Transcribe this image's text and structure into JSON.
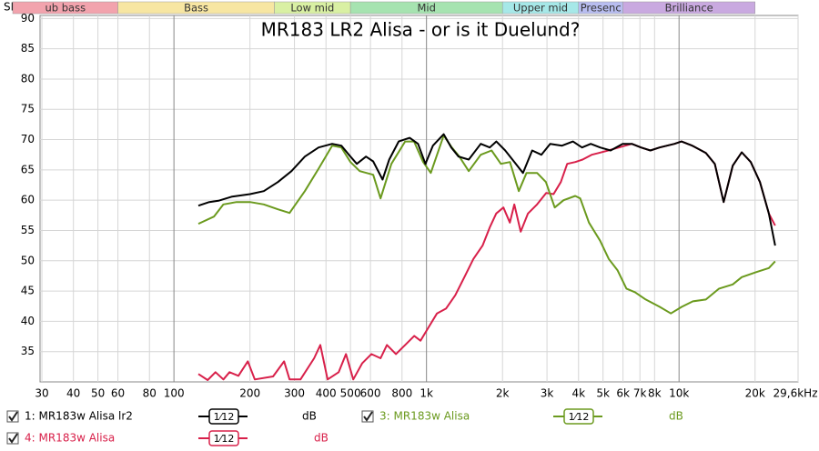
{
  "chart_data": {
    "type": "line",
    "title": "MR183 LR2 Alisa - or is it Duelund?",
    "y_label": "SPL",
    "log_x": true,
    "grid": true,
    "xlim": [
      29.5,
      29600
    ],
    "ylim": [
      30,
      90.5
    ],
    "xticks": [
      30,
      40,
      50,
      60,
      80,
      100,
      200,
      300,
      400,
      500,
      600,
      800,
      {
        "value": 1000,
        "label": "1k"
      },
      {
        "value": 2000,
        "label": "2k"
      },
      {
        "value": 3000,
        "label": "3k"
      },
      {
        "value": 4000,
        "label": "4k"
      },
      {
        "value": 5000,
        "label": "5k"
      },
      {
        "value": 6000,
        "label": "6k"
      },
      {
        "value": 7000,
        "label": "7k"
      },
      {
        "value": 8000,
        "label": "8k"
      },
      {
        "value": 10000,
        "label": "10k"
      },
      {
        "value": 20000,
        "label": "20k"
      },
      {
        "value": 29600,
        "label": "29,6kHz"
      }
    ],
    "yticks": [
      35,
      40,
      45,
      50,
      55,
      60,
      65,
      70,
      75,
      80,
      85,
      90
    ],
    "bands": [
      {
        "name": "ub bass",
        "from": 20,
        "to": 60,
        "color": "#f2a3ad"
      },
      {
        "name": "Bass",
        "from": 60,
        "to": 250,
        "color": "#f7e6a2"
      },
      {
        "name": "Low mid",
        "from": 250,
        "to": 500,
        "color": "#d9f0a3"
      },
      {
        "name": "Mid",
        "from": 500,
        "to": 2000,
        "color": "#a6e3b0"
      },
      {
        "name": "Upper mid",
        "from": 2000,
        "to": 4000,
        "color": "#a6e8e8"
      },
      {
        "name": "Presenc",
        "from": 4000,
        "to": 6000,
        "color": "#b8bdf0"
      },
      {
        "name": "Brilliance",
        "from": 6000,
        "to": 20000,
        "color": "#c9a9e0"
      }
    ],
    "smoothing": "1⁄12",
    "unit": "dB",
    "series": [
      {
        "name": "1: MR183w Alisa lr2",
        "color": "#000000",
        "x": [
          125,
          138,
          150,
          170,
          200,
          227,
          258,
          292,
          330,
          374,
          423,
          460,
          500,
          530,
          576,
          615,
          670,
          712,
          776,
          858,
          926,
          990,
          1060,
          1170,
          1253,
          1340,
          1470,
          1640,
          1780,
          1890,
          2050,
          2230,
          2410,
          2620,
          2850,
          3090,
          3440,
          3800,
          4130,
          4470,
          4870,
          5360,
          5980,
          6500,
          7070,
          7700,
          8370,
          9590,
          10230,
          11280,
          12770,
          13850,
          15020,
          16320,
          17710,
          19230,
          20900,
          22670,
          24020
        ],
        "values": [
          59.1,
          59.7,
          59.9,
          60.6,
          61.0,
          61.5,
          63.0,
          64.8,
          67.2,
          68.7,
          69.3,
          69.0,
          67.2,
          66.0,
          67.2,
          66.4,
          63.4,
          66.7,
          69.7,
          70.3,
          69.3,
          66.0,
          69.0,
          70.9,
          68.7,
          67.2,
          66.7,
          69.3,
          68.7,
          69.7,
          68.2,
          66.3,
          64.5,
          68.2,
          67.5,
          69.3,
          69.0,
          69.7,
          68.7,
          69.3,
          68.7,
          68.2,
          69.3,
          69.3,
          68.7,
          68.2,
          68.7,
          69.3,
          69.7,
          69.0,
          67.8,
          66.0,
          59.7,
          65.7,
          67.9,
          66.3,
          63.0,
          57.8,
          52.5
        ]
      },
      {
        "name": "3: MR183w Alisa",
        "color": "#6b9a1e",
        "x": [
          125,
          144,
          157,
          177,
          200,
          227,
          258,
          287,
          330,
          374,
          423,
          460,
          500,
          544,
          615,
          658,
          726,
          823,
          893,
          970,
          1040,
          1170,
          1260,
          1350,
          1470,
          1640,
          1810,
          1970,
          2140,
          2320,
          2490,
          2740,
          2970,
          3220,
          3490,
          3880,
          4060,
          4400,
          4870,
          5270,
          5710,
          6190,
          6700,
          7380,
          8370,
          9280,
          10260,
          11340,
          12770,
          14400,
          16320,
          17710,
          20130,
          22670,
          24020
        ],
        "values": [
          56.1,
          57.3,
          59.3,
          59.7,
          59.7,
          59.3,
          58.5,
          57.9,
          61.5,
          65.2,
          69.0,
          68.7,
          66.3,
          64.8,
          64.2,
          60.3,
          66.0,
          69.7,
          69.7,
          66.3,
          64.5,
          70.7,
          68.7,
          67.2,
          64.8,
          67.5,
          68.2,
          66.0,
          66.3,
          61.5,
          64.5,
          64.5,
          63.0,
          58.8,
          60.0,
          60.7,
          60.3,
          56.3,
          53.3,
          50.3,
          48.4,
          45.4,
          44.8,
          43.6,
          42.4,
          41.3,
          42.4,
          43.3,
          43.6,
          45.4,
          46.1,
          47.3,
          48.1,
          48.8,
          49.9
        ]
      },
      {
        "name": "4: MR183w Alisa",
        "color": "#d8204a",
        "x": [
          125,
          136,
          146,
          157,
          166,
          180,
          196,
          209,
          247,
          273,
          287,
          317,
          359,
          380,
          406,
          449,
          480,
          513,
          557,
          605,
          658,
          697,
          757,
          823,
          894,
          947,
          1012,
          1100,
          1195,
          1300,
          1412,
          1534,
          1667,
          1780,
          1888,
          2017,
          2138,
          2228,
          2361,
          2523,
          2741,
          2979,
          3184,
          3404,
          3606,
          3884,
          4150,
          4510,
          4820,
          5240,
          5780,
          6500,
          7070,
          7700,
          8370,
          9590,
          10230,
          11280,
          12770,
          13850,
          15020,
          16320,
          17710,
          19230,
          20900,
          22670,
          24020
        ],
        "values": [
          31.3,
          30.3,
          31.6,
          30.4,
          31.6,
          31.0,
          33.4,
          30.4,
          30.9,
          33.4,
          30.4,
          30.4,
          33.9,
          36.1,
          30.4,
          31.6,
          34.6,
          30.4,
          33.1,
          34.6,
          33.9,
          36.1,
          34.6,
          36.1,
          37.6,
          36.8,
          38.8,
          41.3,
          42.1,
          44.3,
          47.3,
          50.3,
          52.5,
          55.5,
          57.8,
          58.8,
          56.3,
          59.3,
          54.8,
          57.8,
          59.3,
          61.2,
          61.0,
          63.0,
          66.0,
          66.3,
          66.7,
          67.5,
          67.8,
          68.2,
          68.7,
          69.3,
          68.7,
          68.2,
          68.7,
          69.3,
          69.7,
          69.0,
          67.8,
          66.0,
          59.7,
          65.7,
          67.9,
          66.3,
          63.0,
          57.8,
          55.8
        ]
      }
    ]
  }
}
